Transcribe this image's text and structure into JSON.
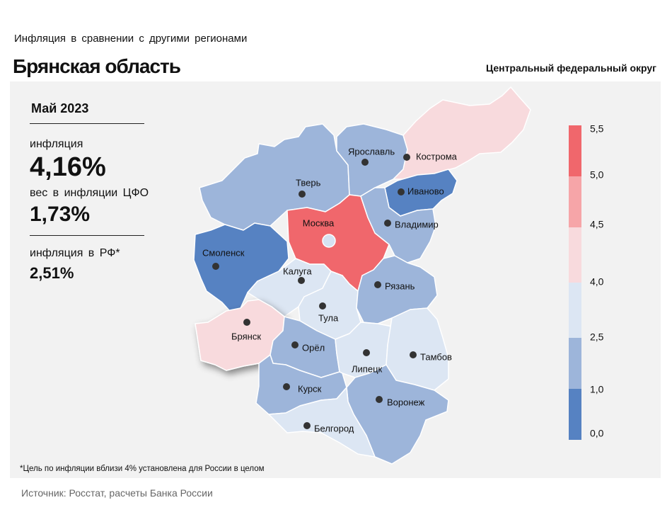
{
  "header": {
    "subtitle": "Инфляция в сравнении с другими регионами",
    "title": "Брянская область",
    "district": "Центральный федеральный округ"
  },
  "stats": {
    "period": "Май 2023",
    "inflation_label": "инфляция",
    "inflation_value": "4,16%",
    "weight_label": "вес в инфляции ЦФО",
    "weight_value": "1,73%",
    "rf_label": "инфляция в РФ*",
    "rf_value": "2,51%"
  },
  "footnote": "*Цель по инфляции вблизи 4% установлена для России в целом",
  "source": "Источник: Росстат, расчеты Банка России",
  "legend": {
    "ticks": [
      "5,5",
      "5,0",
      "4,5",
      "4,0",
      "2,5",
      "1,0",
      "0,0"
    ],
    "bins": [
      {
        "color": "#f0676c"
      },
      {
        "color": "#f6a5a8"
      },
      {
        "color": "#f8dadd"
      },
      {
        "color": "#dce6f3"
      },
      {
        "color": "#9db5da"
      },
      {
        "color": "#5682c2"
      }
    ]
  },
  "regions": [
    {
      "name": "Тверь",
      "color": "#9db5da"
    },
    {
      "name": "Ярославль",
      "color": "#9db5da"
    },
    {
      "name": "Кострома",
      "color": "#f8dadd"
    },
    {
      "name": "Иваново",
      "color": "#5682c2"
    },
    {
      "name": "Москва",
      "color": "#f0676c"
    },
    {
      "name": "Владимир",
      "color": "#9db5da"
    },
    {
      "name": "Смоленск",
      "color": "#5682c2"
    },
    {
      "name": "Калуга",
      "color": "#dce6f3"
    },
    {
      "name": "Тула",
      "color": "#dce6f3"
    },
    {
      "name": "Рязань",
      "color": "#9db5da"
    },
    {
      "name": "Брянск",
      "color": "#f8dadd"
    },
    {
      "name": "Орёл",
      "color": "#9db5da"
    },
    {
      "name": "Липецк",
      "color": "#dce6f3"
    },
    {
      "name": "Тамбов",
      "color": "#dce6f3"
    },
    {
      "name": "Курск",
      "color": "#9db5da"
    },
    {
      "name": "Воронеж",
      "color": "#9db5da"
    },
    {
      "name": "Белгород",
      "color": "#dce6f3"
    }
  ]
}
